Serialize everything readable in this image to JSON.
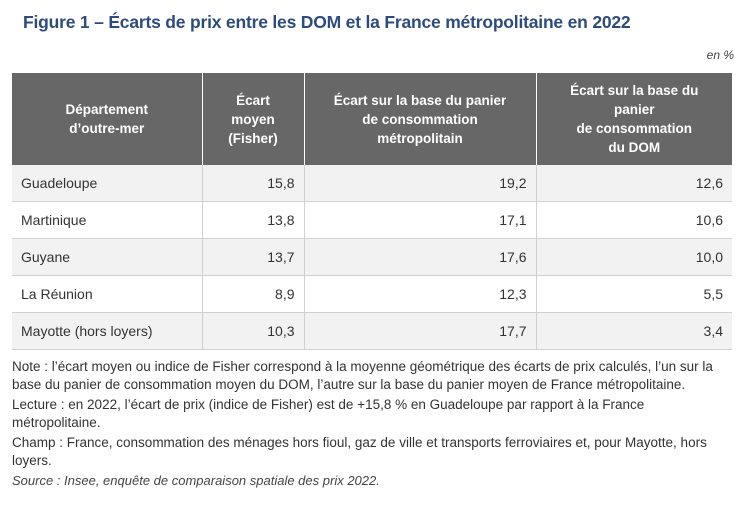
{
  "title": "Figure 1 – Écarts de prix entre les DOM et la France métropolitaine en 2022",
  "unit": "en %",
  "table": {
    "headers": [
      "Département\nd’outre-mer",
      "Écart\nmoyen\n(Fisher)",
      "Écart sur la base du panier\nde consommation\nmétropolitain",
      "Écart sur la base du\npanier\nde consommation\ndu DOM"
    ],
    "rows": [
      [
        "Guadeloupe",
        "15,8",
        "19,2",
        "12,6"
      ],
      [
        "Martinique",
        "13,8",
        "17,1",
        "10,6"
      ],
      [
        "Guyane",
        "13,7",
        "17,6",
        "10,0"
      ],
      [
        "La Réunion",
        "8,9",
        "12,3",
        "5,5"
      ],
      [
        "Mayotte (hors loyers)",
        "10,3",
        "17,7",
        "3,4"
      ]
    ]
  },
  "notes": {
    "note": "Note : l’écart moyen ou indice de Fisher correspond à la moyenne géométrique des écarts de prix calculés, l’un sur la base du panier de consommation moyen du DOM, l’autre sur la base du panier moyen de France métropolitaine.",
    "lecture": "Lecture : en 2022, l’écart de prix (indice de Fisher) est de +15,8 % en Guadeloupe par rapport à la France métropolitaine.",
    "champ": "Champ : France, consommation des ménages hors fioul, gaz de ville et transports ferroviaires et, pour Mayotte, hors loyers.",
    "source": "Source : Insee, enquête de comparaison spatiale des prix 2022."
  },
  "colors": {
    "title": "#2c4c7e",
    "header_bg": "#676767",
    "row_alt": "#f2f2f2"
  }
}
